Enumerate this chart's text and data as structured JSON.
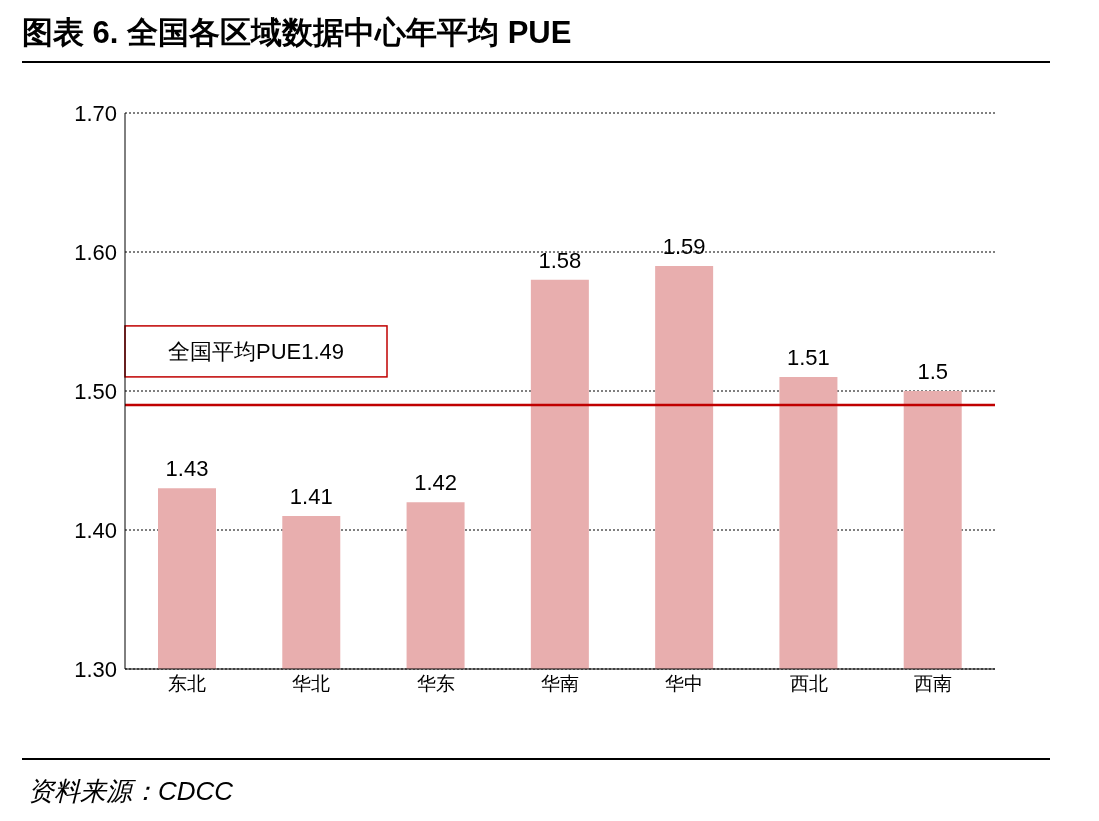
{
  "chart_data": {
    "type": "bar",
    "title": "图表 6. 全国各区域数据中心年平均 PUE",
    "categories": [
      "东北",
      "华北",
      "华东",
      "华南",
      "华中",
      "西北",
      "西南"
    ],
    "values": [
      1.43,
      1.41,
      1.42,
      1.58,
      1.59,
      1.51,
      1.5
    ],
    "color": "#e8aeae",
    "ylim": [
      1.3,
      1.7
    ],
    "yticks": [
      {
        "value": 1.3,
        "label": "1.30"
      },
      {
        "value": 1.4,
        "label": "1.40"
      },
      {
        "value": 1.5,
        "label": "1.50"
      },
      {
        "value": 1.6,
        "label": "1.60"
      },
      {
        "value": 1.7,
        "label": "1.70"
      }
    ],
    "grid": "y",
    "data_labels": true,
    "legend": false,
    "ref_lines": [
      {
        "axis": "y",
        "value": 1.49,
        "label": "全国平均PUE1.49",
        "color": "#c00000"
      }
    ],
    "annotations": [
      "资料来源：CDCC"
    ]
  }
}
